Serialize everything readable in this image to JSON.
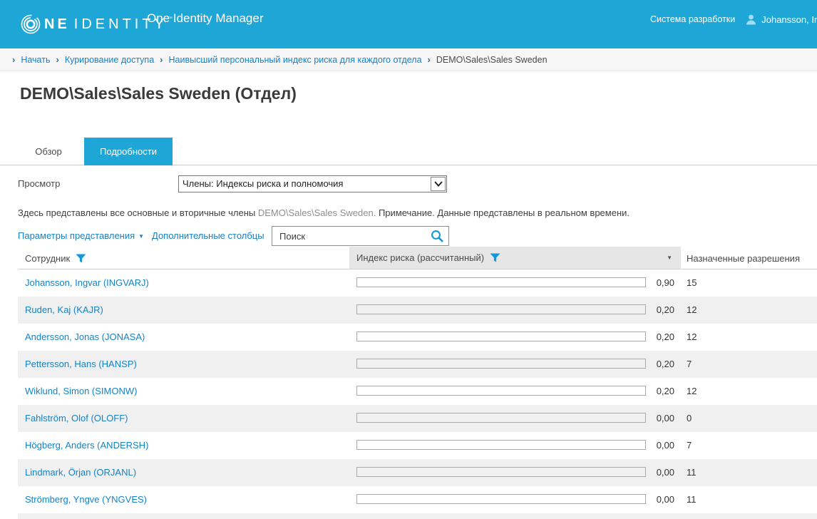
{
  "header": {
    "logo": {
      "text_bold": "NE",
      "text_light": "IDENTITY",
      "trademark": "™"
    },
    "app_title": "One Identity Manager",
    "environment_label": "Система разработки",
    "user_name": "Johansson, Ingvar"
  },
  "breadcrumb": {
    "separator": "›",
    "items": [
      "Начать",
      "Курирование доступа",
      "Наивысший персональный индекс риска для каждого отдела",
      "DEMO\\Sales\\Sales Sweden"
    ]
  },
  "page": {
    "title": "DEMO\\Sales\\Sales Sweden (Отдел)",
    "tabs": [
      {
        "label": "Обзор",
        "active": false
      },
      {
        "label": "Подробности",
        "active": true
      }
    ]
  },
  "view_selector": {
    "label": "Просмотр",
    "selected_option": "Члены: Индексы риска и полномочия"
  },
  "description": {
    "text_before": "Здесь представлены все основные и вторичные члены ",
    "entity": "DEMO\\Sales\\Sales Sweden.",
    "text_after": " Примечание. Данные представлены в реальном времени."
  },
  "toolbar": {
    "view_settings_label": "Параметры представления",
    "dropdown_arrow": "▼",
    "additional_columns_label": "Дополнительные столбцы",
    "search_placeholder": "Поиск"
  },
  "table": {
    "columns": {
      "employee": "Сотрудник",
      "risk_index": "Индекс риска (рассчитанный)",
      "permissions": "Назначенные разрешения"
    },
    "column_menu_arrow": "▼",
    "rows": [
      {
        "name": "Johansson, Ingvar (INGVARJ)",
        "risk": 0.9,
        "risk_label": "0,90",
        "permissions": "15"
      },
      {
        "name": "Ruden, Kaj (KAJR)",
        "risk": 0.2,
        "risk_label": "0,20",
        "permissions": "12"
      },
      {
        "name": "Andersson, Jonas (JONASA)",
        "risk": 0.2,
        "risk_label": "0,20",
        "permissions": "12"
      },
      {
        "name": "Pettersson, Hans (HANSP)",
        "risk": 0.2,
        "risk_label": "0,20",
        "permissions": "7"
      },
      {
        "name": "Wiklund, Simon (SIMONW)",
        "risk": 0.2,
        "risk_label": "0,20",
        "permissions": "12"
      },
      {
        "name": "Fahlström, Olof (OLOFF)",
        "risk": 0.0,
        "risk_label": "0,00",
        "permissions": "0"
      },
      {
        "name": "Högberg, Anders (ANDERSH)",
        "risk": 0.0,
        "risk_label": "0,00",
        "permissions": "7"
      },
      {
        "name": "Lindmark, Örjan (ORJANL)",
        "risk": 0.0,
        "risk_label": "0,00",
        "permissions": "11"
      },
      {
        "name": "Strömberg, Yngve (YNGVES)",
        "risk": 0.0,
        "risk_label": "0,00",
        "permissions": "11"
      }
    ]
  },
  "colors": {
    "accent": "#1EA7D6",
    "risk_bar": "#CC1126",
    "link": "#1682C6",
    "risk_header_bg": "#E6E6E6",
    "alt_row_bg": "#F0F0F0"
  }
}
